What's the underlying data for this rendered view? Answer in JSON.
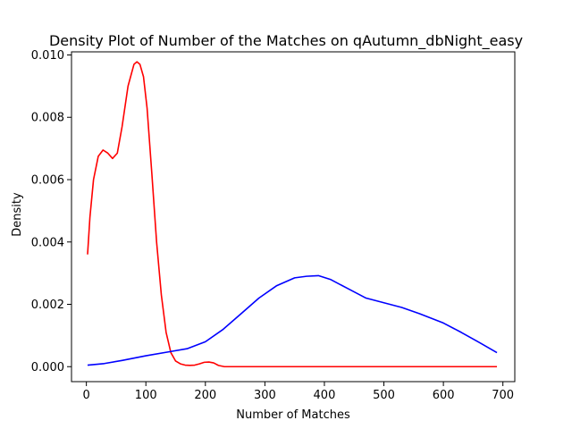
{
  "chart_data": {
    "type": "line",
    "title": "Density Plot of Number of the Matches on qAutumn_dbNight_easy",
    "xlabel": "Number of Matches",
    "ylabel": "Density",
    "xlim": [
      -25,
      720
    ],
    "ylim": [
      -0.00048,
      0.0101
    ],
    "x_ticks": [
      0,
      100,
      200,
      300,
      400,
      500,
      600,
      700
    ],
    "x_tick_labels": [
      "0",
      "100",
      "200",
      "300",
      "400",
      "500",
      "600",
      "700"
    ],
    "y_ticks": [
      0.0,
      0.002,
      0.004,
      0.006,
      0.008,
      0.01
    ],
    "y_tick_labels": [
      "0.000",
      "0.002",
      "0.004",
      "0.006",
      "0.008",
      "0.010"
    ],
    "grid": false,
    "legend": "none",
    "series": [
      {
        "color": "#ff0000",
        "points": [
          [
            2,
            0.0036
          ],
          [
            6,
            0.0048
          ],
          [
            12,
            0.006
          ],
          [
            20,
            0.00675
          ],
          [
            28,
            0.00695
          ],
          [
            36,
            0.00685
          ],
          [
            44,
            0.00668
          ],
          [
            52,
            0.00685
          ],
          [
            60,
            0.0077
          ],
          [
            70,
            0.009
          ],
          [
            80,
            0.0097
          ],
          [
            85,
            0.00978
          ],
          [
            90,
            0.0097
          ],
          [
            96,
            0.0093
          ],
          [
            102,
            0.0083
          ],
          [
            110,
            0.0062
          ],
          [
            118,
            0.004
          ],
          [
            126,
            0.0023
          ],
          [
            134,
            0.0011
          ],
          [
            142,
            0.00045
          ],
          [
            150,
            0.00018
          ],
          [
            158,
            9e-05
          ],
          [
            166,
            5e-05
          ],
          [
            174,
            4e-05
          ],
          [
            182,
            5e-05
          ],
          [
            190,
            9e-05
          ],
          [
            198,
            0.00014
          ],
          [
            206,
            0.00015
          ],
          [
            214,
            0.00012
          ],
          [
            222,
            4e-05
          ],
          [
            232,
            0.0
          ],
          [
            250,
            0.0
          ],
          [
            300,
            0.0
          ],
          [
            400,
            0.0
          ],
          [
            500,
            0.0
          ],
          [
            600,
            0.0
          ],
          [
            690,
            0.0
          ]
        ]
      },
      {
        "color": "#0000ff",
        "points": [
          [
            2,
            5e-05
          ],
          [
            30,
            0.0001
          ],
          [
            60,
            0.0002
          ],
          [
            100,
            0.00035
          ],
          [
            140,
            0.00048
          ],
          [
            170,
            0.00058
          ],
          [
            200,
            0.0008
          ],
          [
            230,
            0.0012
          ],
          [
            260,
            0.0017
          ],
          [
            290,
            0.0022
          ],
          [
            320,
            0.0026
          ],
          [
            350,
            0.00285
          ],
          [
            370,
            0.0029
          ],
          [
            390,
            0.00292
          ],
          [
            410,
            0.0028
          ],
          [
            440,
            0.0025
          ],
          [
            470,
            0.0022
          ],
          [
            500,
            0.00205
          ],
          [
            530,
            0.0019
          ],
          [
            560,
            0.0017
          ],
          [
            600,
            0.0014
          ],
          [
            630,
            0.0011
          ],
          [
            660,
            0.00078
          ],
          [
            690,
            0.00045
          ]
        ]
      }
    ]
  }
}
